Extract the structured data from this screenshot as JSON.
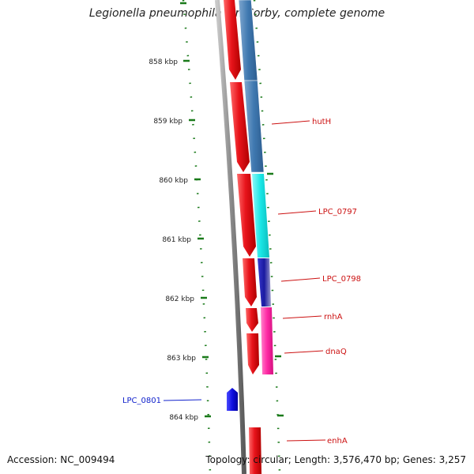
{
  "title": "Legionella pneumophila str. Corby, complete genome",
  "footer": {
    "accession": "Accession: NC_009494",
    "summary": "Topology: circular; Length: 3,576,470 bp; Genes: 3,257"
  },
  "colors": {
    "backbone": "#8c8c8c",
    "tick": "#1a7a1a",
    "forward_cds": "#e8141b",
    "reverse_label": "#cc1111",
    "forward_label": "#1122cc"
  },
  "tick_labels": [
    "858 kbp",
    "859 kbp",
    "860 kbp",
    "861 kbp",
    "862 kbp",
    "863 kbp",
    "864 kbp"
  ],
  "genes": [
    {
      "label": "hutH",
      "color": "#cc1111"
    },
    {
      "label": "LPC_0797",
      "color": "#cc1111"
    },
    {
      "label": "LPC_0798",
      "color": "#cc1111"
    },
    {
      "label": "rnhA",
      "color": "#cc1111"
    },
    {
      "label": "dnaQ",
      "color": "#cc1111"
    },
    {
      "label": "enhA",
      "color": "#cc1111"
    },
    {
      "label": "LPC_0801",
      "color": "#1122cc"
    }
  ],
  "category_colors": [
    "#3f78b0",
    "#19e6e6",
    "#1a1aa0",
    "#ff2aa5"
  ]
}
